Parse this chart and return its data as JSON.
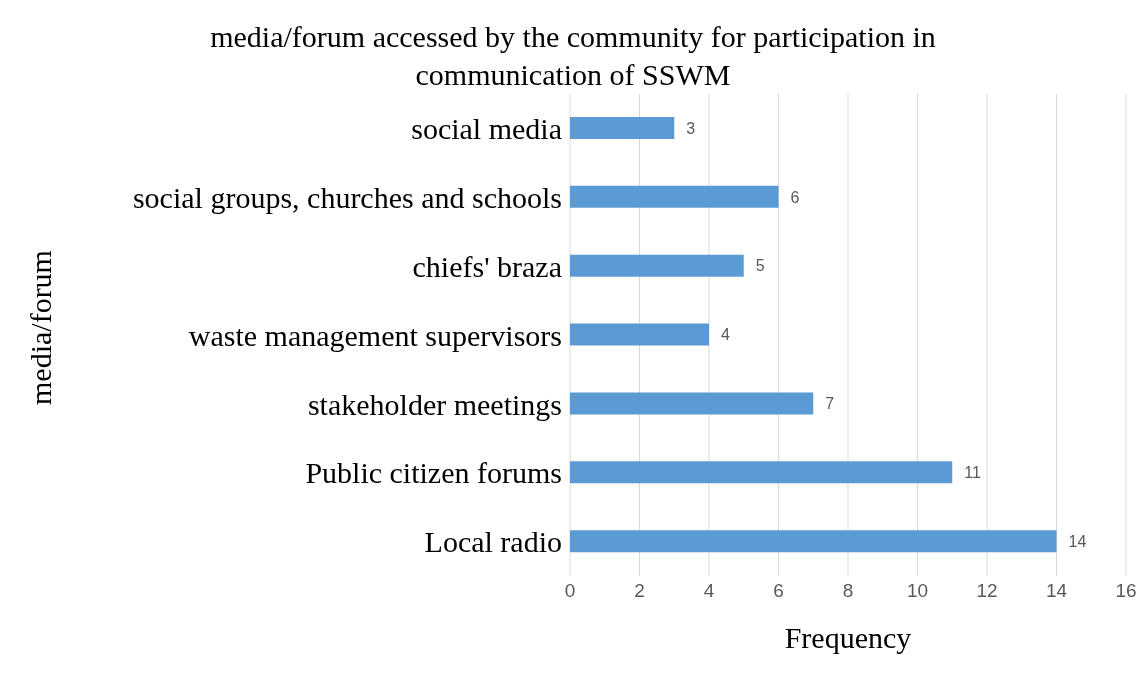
{
  "chart_data": {
    "type": "bar",
    "orientation": "horizontal",
    "title": "media/forum accessed by the community for participation in communication of SSWM",
    "xlabel": "Frequency",
    "ylabel": "media/forum",
    "categories": [
      "social media",
      "social groups, churches and schools",
      "chiefs' braza",
      "waste management supervisors",
      "stakeholder meetings",
      "Public citizen forums",
      "Local radio"
    ],
    "values": [
      3,
      6,
      5,
      4,
      7,
      11,
      14
    ],
    "color": "#5b9bd5",
    "xlim": [
      0,
      16
    ],
    "xticks": [
      0,
      2,
      4,
      6,
      8,
      10,
      12,
      14,
      16
    ],
    "grid": "x",
    "data_labels": true
  }
}
